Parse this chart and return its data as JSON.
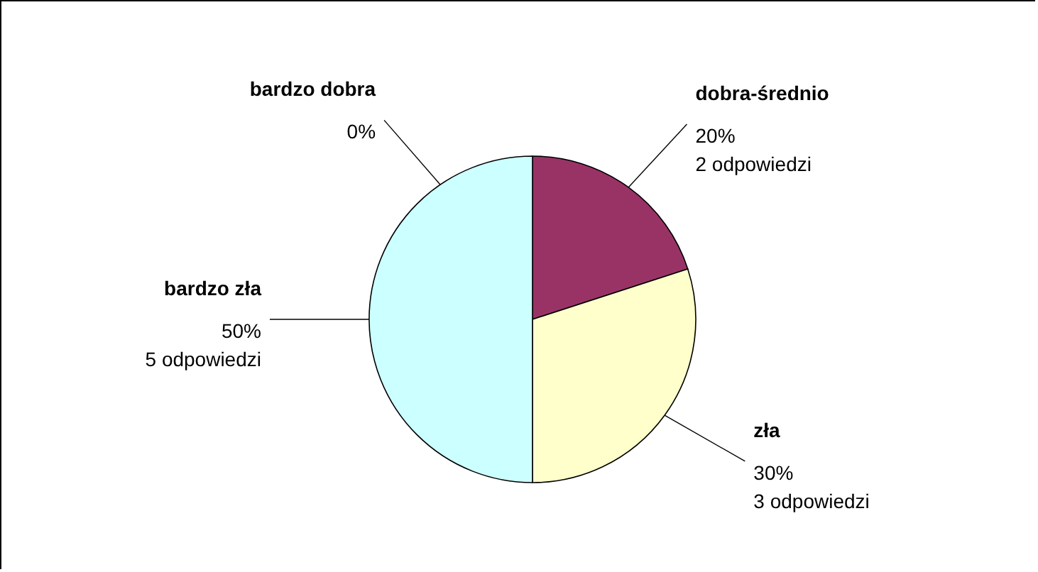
{
  "chart_data": {
    "type": "pie",
    "categories": [
      "bardzo dobra",
      "dobra-średnio",
      "zła",
      "bardzo zła"
    ],
    "values": [
      0,
      20,
      30,
      50
    ],
    "colors": [
      "#9999ff",
      "#993366",
      "#ffffcc",
      "#ccffff"
    ],
    "value_labels": [
      "0%",
      "20%\n2 odpowiedzi",
      "30%\n3 odpowiedzi",
      "50%\n5 odpowiedzi"
    ]
  }
}
